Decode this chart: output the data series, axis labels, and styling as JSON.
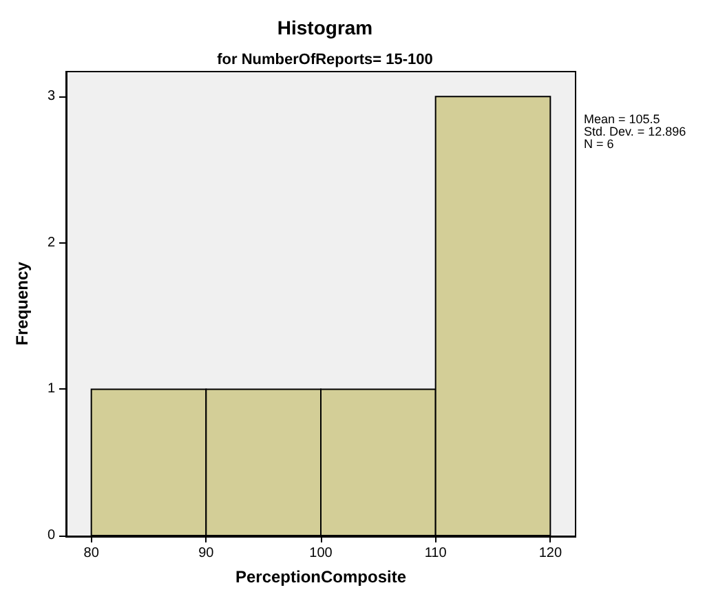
{
  "chart_data": {
    "type": "histogram",
    "title": "Histogram",
    "subtitle": "for NumberOfReports= 15-100",
    "xlabel": "PerceptionComposite",
    "ylabel": "Frequency",
    "bins": [
      80,
      90,
      100,
      110,
      120
    ],
    "values": [
      1,
      1,
      1,
      3
    ],
    "color": "#d3ce97",
    "xlim": [
      77.8,
      122.2
    ],
    "xticks": [
      80,
      90,
      100,
      110,
      120
    ],
    "ylim": [
      0,
      3.17
    ],
    "yticks": [
      0,
      1,
      2,
      3
    ],
    "grid": false,
    "annotations": [
      "Mean = 105.5\nStd. Dev. = 12.896\nN = 6"
    ]
  }
}
